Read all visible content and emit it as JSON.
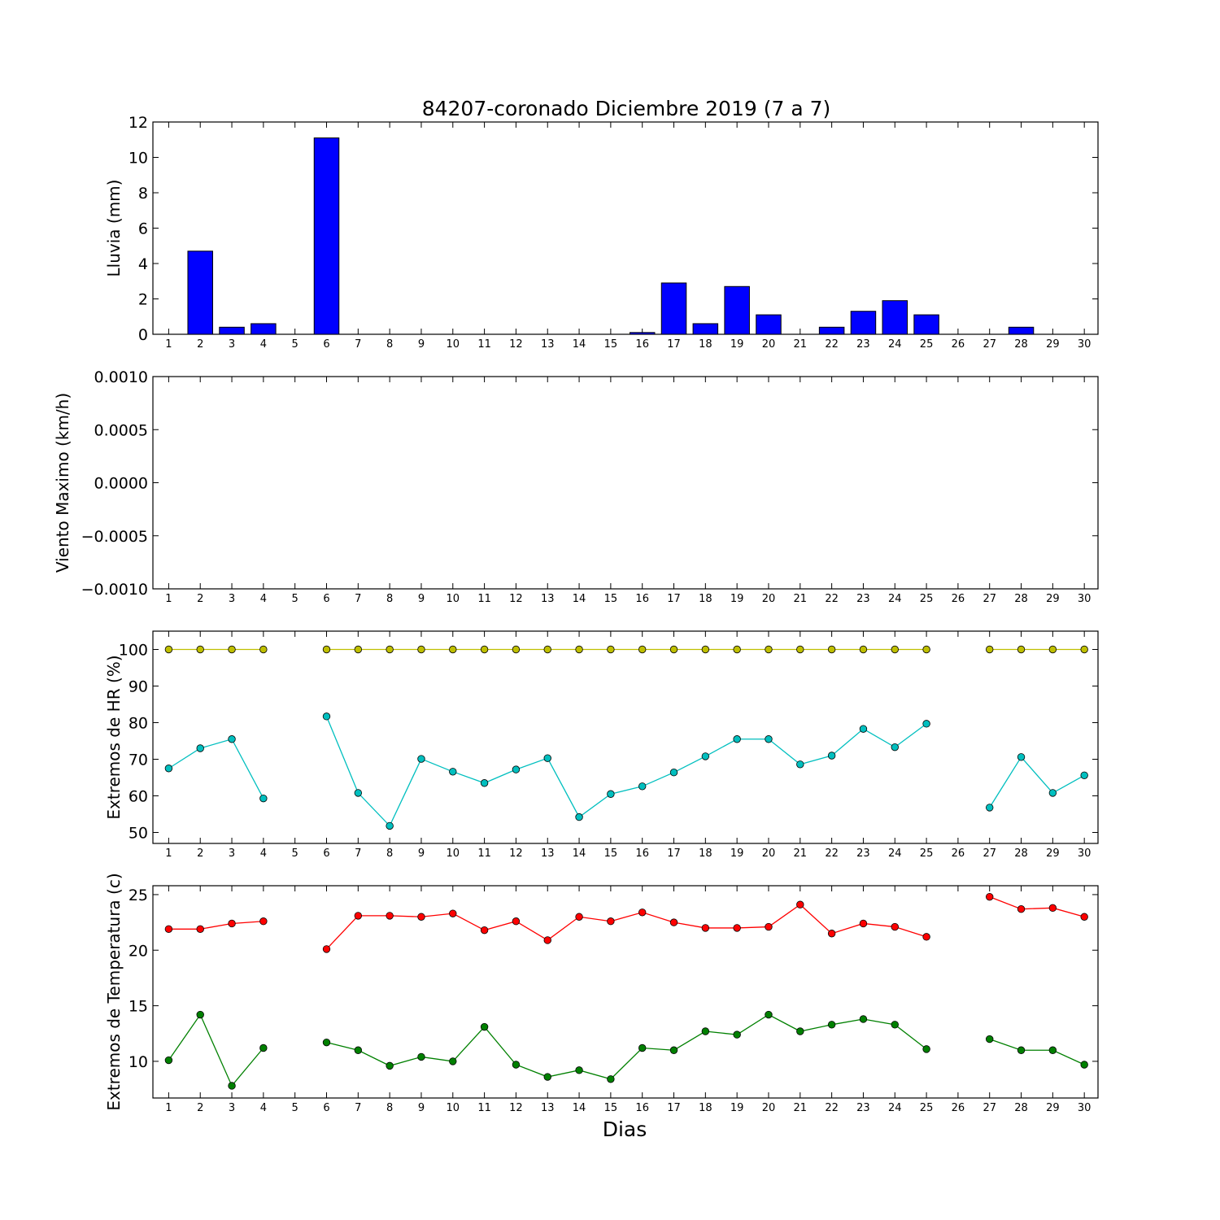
{
  "figure": {
    "title": "84207-coronado Diciembre 2019  (7 a 7)",
    "xlabel": "Dias"
  },
  "chart_data": [
    {
      "type": "bar",
      "ylabel": "Lluvia (mm)",
      "ylim": [
        0,
        12
      ],
      "yticks": [
        "0",
        "2",
        "4",
        "6",
        "8",
        "10",
        "12"
      ],
      "categories": [
        1,
        2,
        3,
        4,
        5,
        6,
        7,
        8,
        9,
        10,
        11,
        12,
        13,
        14,
        15,
        16,
        17,
        18,
        19,
        20,
        21,
        22,
        23,
        24,
        25,
        26,
        27,
        28,
        29,
        30
      ],
      "values": [
        0,
        4.7,
        0.4,
        0.6,
        null,
        11.1,
        0,
        0,
        0,
        0,
        0,
        0,
        0,
        0,
        0,
        0.1,
        2.9,
        0.6,
        2.7,
        1.1,
        0,
        0.4,
        1.3,
        1.9,
        1.1,
        null,
        0,
        0.4,
        0,
        0
      ],
      "colors": {
        "bar": "#0000ff"
      }
    },
    {
      "type": "line",
      "ylabel": "Viento Maximo (km/h)",
      "ylim": [
        -0.001,
        0.001
      ],
      "yticks": [
        "−0.0010",
        "−0.0005",
        "0.0000",
        "0.0005",
        "0.0010"
      ],
      "categories": [
        1,
        2,
        3,
        4,
        5,
        6,
        7,
        8,
        9,
        10,
        11,
        12,
        13,
        14,
        15,
        16,
        17,
        18,
        19,
        20,
        21,
        22,
        23,
        24,
        25,
        26,
        27,
        28,
        29,
        30
      ],
      "series": []
    },
    {
      "type": "line",
      "ylabel": "Extremos de HR (%)",
      "ylim": [
        47,
        105
      ],
      "yticks": [
        "50",
        "60",
        "70",
        "80",
        "90",
        "100"
      ],
      "categories": [
        1,
        2,
        3,
        4,
        5,
        6,
        7,
        8,
        9,
        10,
        11,
        12,
        13,
        14,
        15,
        16,
        17,
        18,
        19,
        20,
        21,
        22,
        23,
        24,
        25,
        26,
        27,
        28,
        29,
        30
      ],
      "series": [
        {
          "color": "#bfbf00",
          "values": [
            100,
            100,
            100,
            100,
            null,
            100,
            100,
            100,
            100,
            100,
            100,
            100,
            100,
            100,
            100,
            100,
            100,
            100,
            100,
            100,
            100,
            100,
            100,
            100,
            100,
            null,
            100,
            100,
            100,
            100
          ]
        },
        {
          "color": "#00bfbf",
          "values": [
            67.5,
            73,
            75.5,
            59.3,
            null,
            81.7,
            60.8,
            51.8,
            70.1,
            66.6,
            63.5,
            67.2,
            70.3,
            54.2,
            60.5,
            62.6,
            66.4,
            70.8,
            75.5,
            75.5,
            68.6,
            71,
            78.3,
            73.3,
            79.7,
            null,
            56.8,
            70.6,
            60.8,
            65.6
          ]
        }
      ]
    },
    {
      "type": "line",
      "ylabel": "Extremos de Temperatura (c)",
      "ylim": [
        6.7,
        25.8
      ],
      "yticks": [
        "10",
        "15",
        "20",
        "25"
      ],
      "categories": [
        1,
        2,
        3,
        4,
        5,
        6,
        7,
        8,
        9,
        10,
        11,
        12,
        13,
        14,
        15,
        16,
        17,
        18,
        19,
        20,
        21,
        22,
        23,
        24,
        25,
        26,
        27,
        28,
        29,
        30
      ],
      "series": [
        {
          "color": "#ff0000",
          "values": [
            21.9,
            21.9,
            22.4,
            22.6,
            null,
            20.1,
            23.1,
            23.1,
            23,
            23.3,
            21.8,
            22.6,
            20.9,
            23,
            22.6,
            23.4,
            22.5,
            22,
            22,
            22.1,
            24.1,
            21.5,
            22.4,
            22.1,
            21.2,
            null,
            24.8,
            23.7,
            23.8,
            23
          ]
        },
        {
          "color": "#008000",
          "values": [
            10.1,
            14.2,
            7.8,
            11.2,
            null,
            11.7,
            11,
            9.6,
            10.4,
            10,
            13.1,
            9.7,
            8.6,
            9.2,
            8.4,
            11.2,
            11,
            12.7,
            12.4,
            14.2,
            12.7,
            13.3,
            13.8,
            13.3,
            11.1,
            null,
            12,
            11,
            11,
            9.7
          ]
        }
      ]
    }
  ]
}
